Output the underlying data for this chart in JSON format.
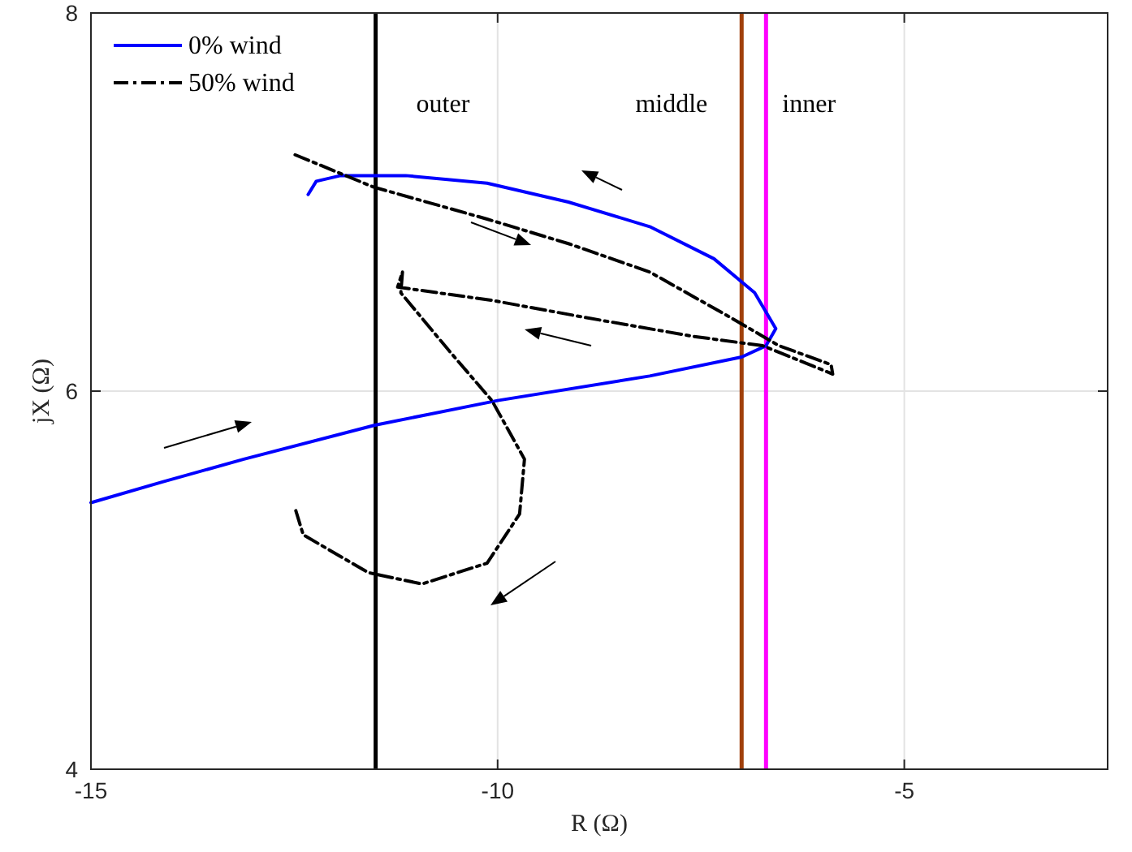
{
  "chart_data": {
    "type": "line",
    "xlabel": "R (Ω)",
    "ylabel": "jX (Ω)",
    "xlim": [
      -15,
      -2.5
    ],
    "ylim": [
      4,
      8
    ],
    "xticks": [
      -15,
      -10,
      -5
    ],
    "yticks": [
      4,
      6,
      8
    ],
    "grid": true,
    "legend": "top left",
    "marker": "none",
    "series": [
      {
        "name": "0% wind",
        "color": "#0000ff",
        "line_style": "solid",
        "x": [
          -15,
          -14.12,
          -13.12,
          -11.51,
          -10,
          -8.13,
          -7.0,
          -6.7,
          -6.58,
          -6.84,
          -7.34,
          -8.13,
          -9.13,
          -10.13,
          -11.13,
          -11.93,
          -12.23,
          -12.33
        ],
        "values": [
          5.41,
          5.52,
          5.64,
          5.82,
          5.95,
          6.08,
          6.18,
          6.24,
          6.33,
          6.52,
          6.7,
          6.87,
          7.0,
          7.1,
          7.14,
          7.14,
          7.11,
          7.04
        ]
      },
      {
        "name": "50% wind",
        "color": "#000000",
        "line_style": "dashed",
        "x": [
          -12.49,
          -11.53,
          -10.13,
          -9.13,
          -8.13,
          -7.14,
          -6.54,
          -5.9,
          -5.88,
          -6.74,
          -7.6,
          -8.93,
          -10.07,
          -11.23,
          -11.17,
          -11.19,
          -10.59,
          -10.07,
          -9.67,
          -9.73,
          -10.13,
          -10.93,
          -11.59,
          -12.39,
          -12.49
        ],
        "values": [
          7.25,
          7.08,
          6.91,
          6.78,
          6.63,
          6.39,
          6.24,
          6.14,
          6.09,
          6.24,
          6.29,
          6.39,
          6.48,
          6.55,
          6.63,
          6.52,
          6.21,
          5.95,
          5.64,
          5.35,
          5.09,
          4.98,
          5.04,
          5.24,
          5.38
        ]
      }
    ],
    "ref_lines": [
      {
        "axis": "x",
        "value": -11.5,
        "color": "#000000"
      },
      {
        "axis": "x",
        "value": -7.0,
        "color": "#a0400a"
      },
      {
        "axis": "x",
        "value": -6.7,
        "color": "#ff00ff"
      }
    ],
    "annotations": [
      "outer",
      "middle",
      "inner"
    ]
  }
}
